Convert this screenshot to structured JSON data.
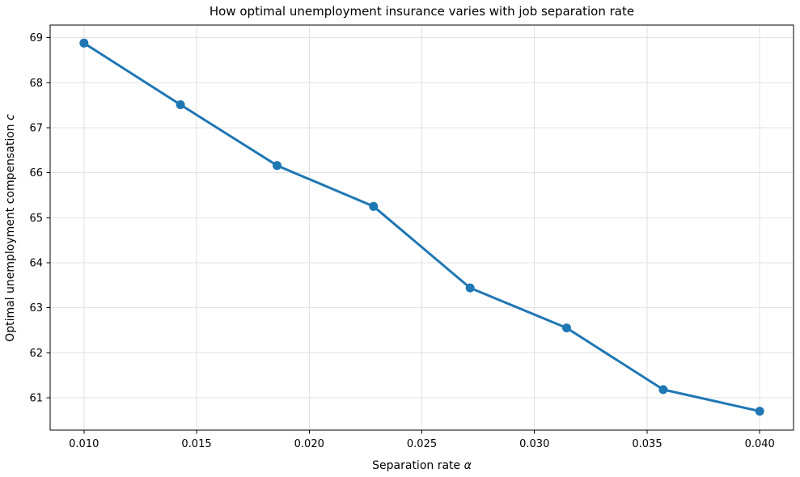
{
  "chart_data": {
    "type": "line",
    "title": "How optimal unemployment insurance varies with job separation rate",
    "xlabel": {
      "text": "Separation rate ",
      "italic_suffix": "α"
    },
    "ylabel": {
      "text": "Optimal unemployment compensation ",
      "italic_suffix": "c"
    },
    "x": [
      0.01,
      0.014286,
      0.018571,
      0.022857,
      0.027143,
      0.031429,
      0.035714,
      0.04
    ],
    "y": [
      68.88,
      67.51,
      66.16,
      65.25,
      63.44,
      62.55,
      61.18,
      60.7
    ],
    "xlim": [
      0.0085,
      0.0415
    ],
    "ylim": [
      60.28,
      69.28
    ],
    "xticks": [
      0.01,
      0.015,
      0.02,
      0.025,
      0.03,
      0.035,
      0.04
    ],
    "xtick_labels": [
      "0.010",
      "0.015",
      "0.020",
      "0.025",
      "0.030",
      "0.035",
      "0.040"
    ],
    "yticks": [
      61,
      62,
      63,
      64,
      65,
      66,
      67,
      68,
      69
    ],
    "ytick_labels": [
      "61",
      "62",
      "63",
      "64",
      "65",
      "66",
      "67",
      "68",
      "69"
    ],
    "grid": true,
    "legend": null,
    "line_color": "#1f77b4",
    "marker": "circle",
    "grid_color": "#e2e2e2",
    "spine_color": "#000000"
  }
}
